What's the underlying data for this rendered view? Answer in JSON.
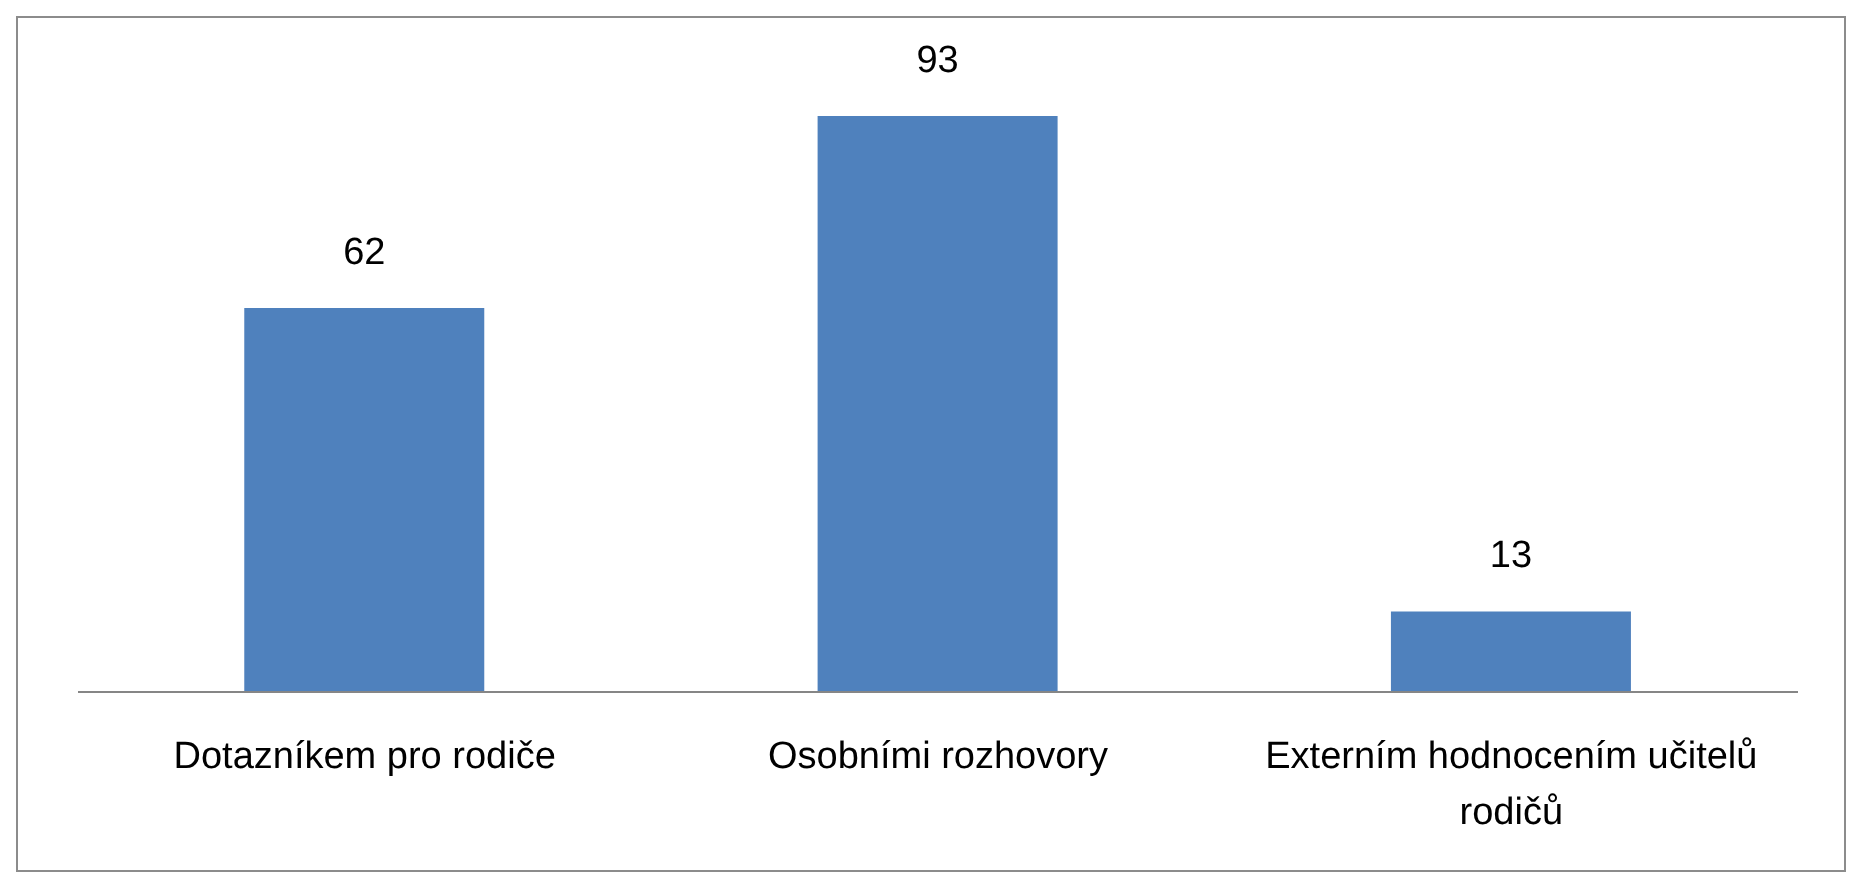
{
  "chart_data": {
    "type": "bar",
    "categories": [
      "Dotazníkem pro rodiče",
      "Osobními rozhovory",
      "Externím hodnocením učitelů rodičů"
    ],
    "values": [
      62,
      93,
      13
    ],
    "color": "#4f81bd",
    "data_labels": true
  }
}
